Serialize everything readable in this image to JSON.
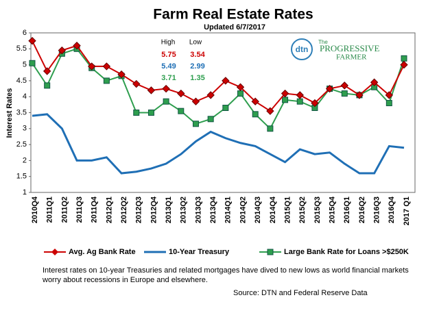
{
  "chart_data": {
    "type": "line",
    "title": "Farm Real Estate Rates",
    "subtitle": "Updated  6/7/2017",
    "y_label": "Interest Rates",
    "categories": [
      "2010Q4",
      "2011Q1",
      "2011Q2",
      "2011Q3",
      "2011Q4",
      "2012Q1",
      "2012Q2",
      "2012Q3",
      "2012Q4",
      "2013Q1",
      "2013Q2",
      "2013Q3",
      "2013Q4",
      "2014Q1",
      "2014Q2",
      "2014Q3",
      "2014Q4",
      "2015Q1",
      "2015Q2",
      "2015Q3",
      "2015Q4",
      "2016Q1",
      "2016Q2",
      "2016Q3",
      "2016Q4",
      "2017 Q1"
    ],
    "series": [
      {
        "name": "Avg. Ag Bank Rate",
        "color": "#cc0000",
        "marker": "diamond",
        "values": [
          5.75,
          4.8,
          5.45,
          5.6,
          4.95,
          4.95,
          4.7,
          4.4,
          4.2,
          4.25,
          4.1,
          3.85,
          4.05,
          4.5,
          4.3,
          3.85,
          3.55,
          4.1,
          4.05,
          3.8,
          4.25,
          4.35,
          4.05,
          4.45,
          4.05,
          5.0
        ]
      },
      {
        "name": "10-Year Treasury",
        "color": "#1f6fb5",
        "marker": "none",
        "values": [
          3.4,
          3.45,
          3.0,
          2.0,
          2.0,
          2.1,
          1.6,
          1.65,
          1.75,
          1.9,
          2.2,
          2.6,
          2.9,
          2.7,
          2.55,
          2.45,
          2.2,
          1.95,
          2.35,
          2.2,
          2.25,
          1.9,
          1.6,
          1.6,
          2.45,
          2.4
        ]
      },
      {
        "name": "Large Bank Rate for Loans >$250K",
        "color": "#2e9e4e",
        "marker": "square",
        "values": [
          5.05,
          4.35,
          5.35,
          5.5,
          4.9,
          4.5,
          4.65,
          3.5,
          3.5,
          3.85,
          3.55,
          3.15,
          3.3,
          3.65,
          4.1,
          3.45,
          3.0,
          3.9,
          3.85,
          3.65,
          4.25,
          4.1,
          4.05,
          4.3,
          3.8,
          5.2
        ]
      }
    ],
    "ylim": [
      1,
      6
    ],
    "yticks": [
      1,
      1.5,
      2,
      2.5,
      3,
      3.5,
      4,
      4.5,
      5,
      5.5,
      6
    ],
    "high_low": {
      "headers": [
        "High",
        "Low"
      ],
      "rows": [
        [
          5.75,
          3.54
        ],
        [
          5.49,
          2.99
        ],
        [
          3.71,
          1.35
        ]
      ]
    },
    "logo": {
      "mark": "dtn",
      "line1": "The",
      "line2": "PROGRESSIVE",
      "line3": "FARMER"
    },
    "note": "Interest rates on 10-year Treasuries and related mortgages have dived to new lows as world financial markets worry about recessions in Europe and elsewhere.",
    "source": "Source: DTN and Federal Reserve Data"
  }
}
